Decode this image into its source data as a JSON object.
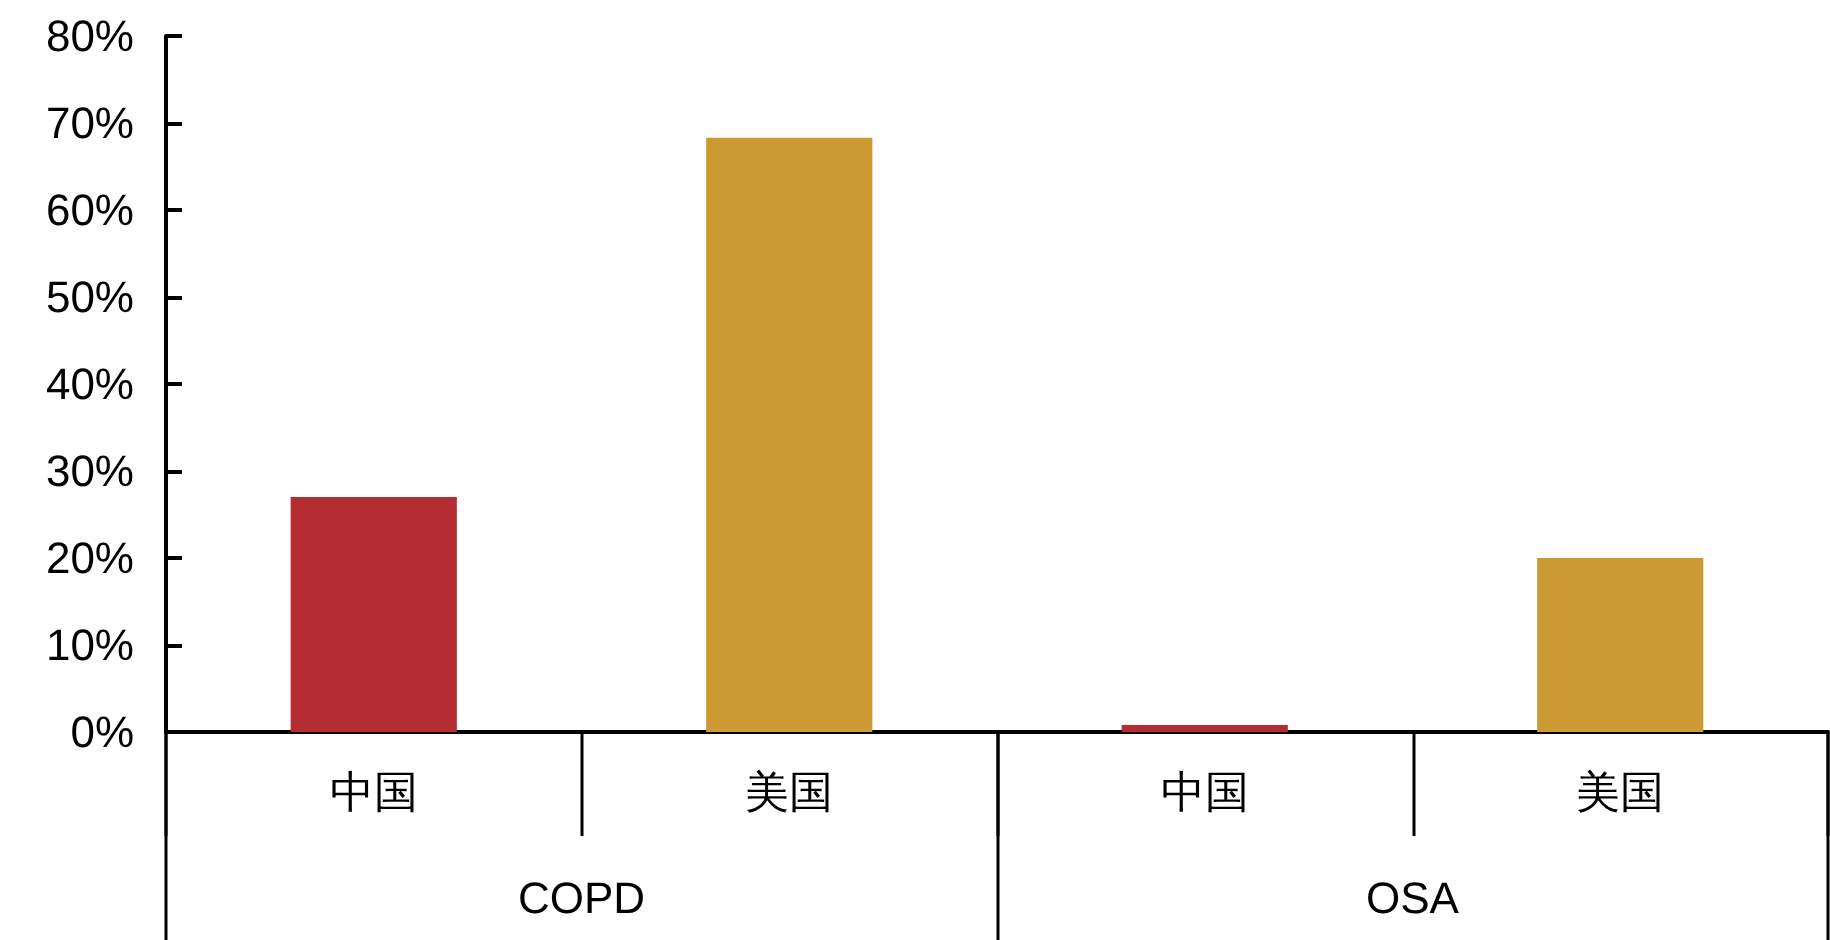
{
  "chart_data": {
    "type": "bar",
    "categories": [
      "COPD",
      "OSA"
    ],
    "series": [
      {
        "name": "中国",
        "color": "#b42c32",
        "values": [
          27,
          0.8
        ]
      },
      {
        "name": "美国",
        "color": "#cc9933",
        "values": [
          68.3,
          20
        ]
      }
    ],
    "ylim": [
      0,
      80
    ],
    "yticks": [
      {
        "value": 0,
        "label": "0%"
      },
      {
        "value": 10,
        "label": "10%"
      },
      {
        "value": 20,
        "label": "20%"
      },
      {
        "value": 30,
        "label": "30%"
      },
      {
        "value": 40,
        "label": "40%"
      },
      {
        "value": 50,
        "label": "50%"
      },
      {
        "value": 60,
        "label": "60%"
      },
      {
        "value": 70,
        "label": "70%"
      },
      {
        "value": 80,
        "label": "80%"
      }
    ]
  }
}
